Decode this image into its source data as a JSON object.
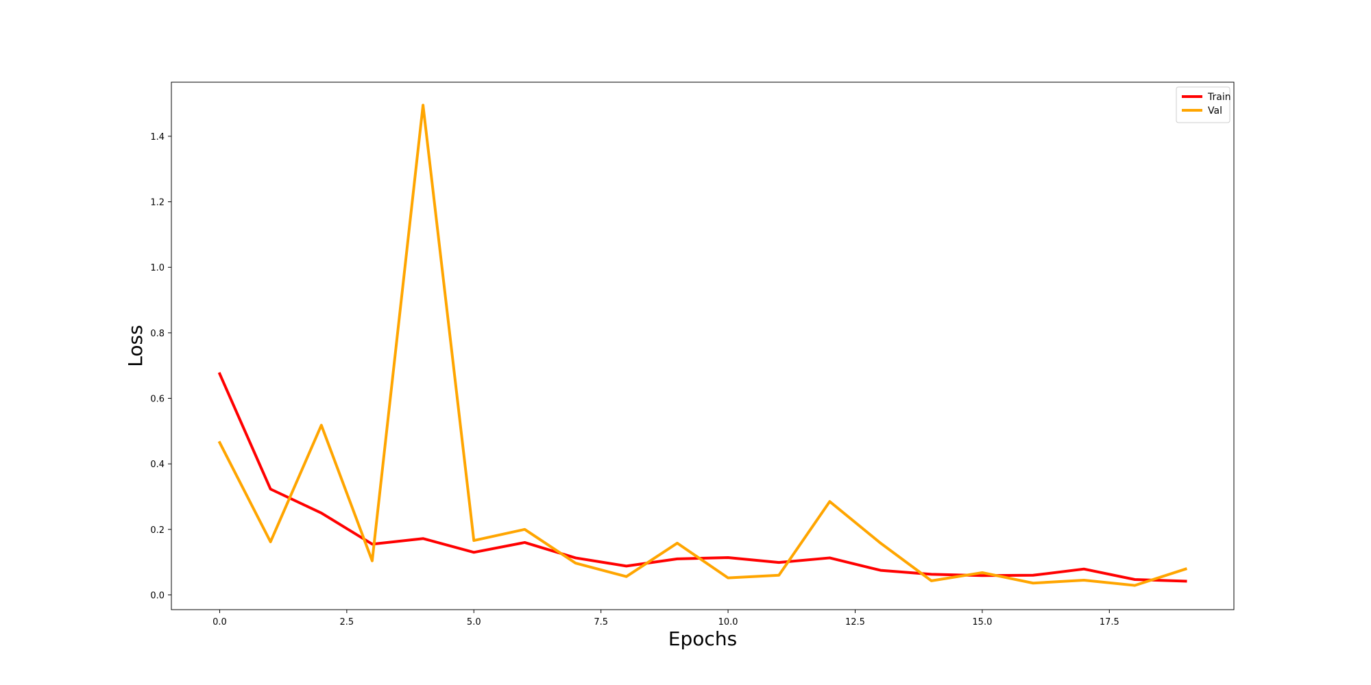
{
  "chart_data": {
    "type": "line",
    "xlabel": "Epochs",
    "ylabel": "Loss",
    "xlim": [
      -0.95,
      19.95
    ],
    "ylim": [
      -0.045,
      1.565
    ],
    "xticks": [
      0.0,
      2.5,
      5.0,
      7.5,
      10.0,
      12.5,
      15.0,
      17.5
    ],
    "xtick_labels": [
      "0.0",
      "2.5",
      "5.0",
      "7.5",
      "10.0",
      "12.5",
      "15.0",
      "17.5"
    ],
    "yticks": [
      0.0,
      0.2,
      0.4,
      0.6,
      0.8,
      1.0,
      1.2,
      1.4
    ],
    "ytick_labels": [
      "0.0",
      "0.2",
      "0.4",
      "0.6",
      "0.8",
      "1.0",
      "1.2",
      "1.4"
    ],
    "grid": false,
    "legend_position": "top-right",
    "x": [
      0,
      1,
      2,
      3,
      4,
      5,
      6,
      7,
      8,
      9,
      10,
      11,
      12,
      13,
      14,
      15,
      16,
      17,
      18,
      19
    ],
    "series": [
      {
        "name": "Train",
        "color": "#ff0000",
        "values": [
          0.675,
          0.323,
          0.25,
          0.155,
          0.172,
          0.13,
          0.16,
          0.113,
          0.088,
          0.11,
          0.114,
          0.099,
          0.113,
          0.075,
          0.063,
          0.059,
          0.06,
          0.079,
          0.047,
          0.042
        ]
      },
      {
        "name": "Val",
        "color": "#ffa500",
        "values": [
          0.465,
          0.162,
          0.518,
          0.104,
          1.495,
          0.166,
          0.2,
          0.097,
          0.056,
          0.158,
          0.052,
          0.06,
          0.285,
          0.158,
          0.043,
          0.068,
          0.036,
          0.045,
          0.029,
          0.079
        ]
      }
    ]
  }
}
